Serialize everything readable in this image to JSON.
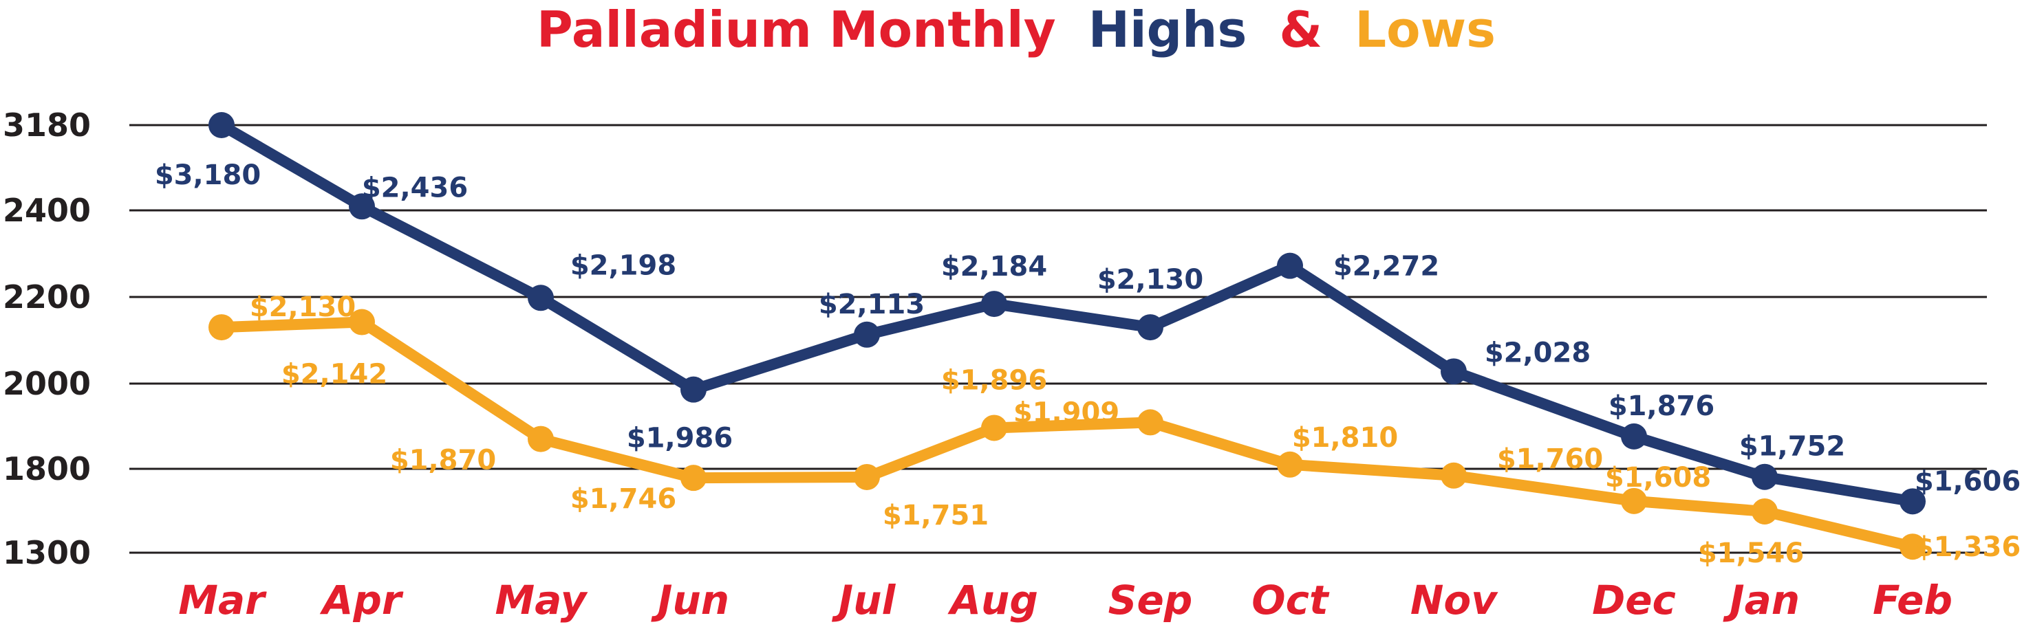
{
  "chart_data": {
    "type": "line",
    "title": {
      "part1": "Palladium Monthly",
      "part2": "Highs",
      "part3": "&",
      "part4": "Lows"
    },
    "categories": [
      "Mar",
      "Apr",
      "May",
      "Jun",
      "Jul",
      "Aug",
      "Sep",
      "Oct",
      "Nov",
      "Dec",
      "Jan",
      "Feb"
    ],
    "y_ticks": [
      "3180",
      "2400",
      "2200",
      "2000",
      "1800",
      "1300"
    ],
    "grid": true,
    "series": [
      {
        "name": "Highs",
        "color": "#233a70",
        "values": [
          3180,
          2436,
          2198,
          1986,
          2113,
          2184,
          2130,
          2272,
          2028,
          1876,
          1752,
          1606
        ],
        "labels": [
          "$3,180",
          "$2,436",
          "$2,198",
          "$1,986",
          "$2,113",
          "$2,184",
          "$2,130",
          "$2,272",
          "$2,028",
          "$1,876",
          "$1,752",
          "$1,606"
        ]
      },
      {
        "name": "Lows",
        "color": "#f5a623",
        "values": [
          2130,
          2142,
          1870,
          1746,
          1751,
          1896,
          1909,
          1810,
          1760,
          1608,
          1546,
          1336
        ],
        "labels": [
          "$2,130",
          "$2,142",
          "$1,870",
          "$1,746",
          "$1,751",
          "$1,896",
          "$1,909",
          "$1,810",
          "$1,760",
          "$1,608",
          "$1,546",
          "$1,336"
        ]
      }
    ],
    "colors": {
      "title_red": "#e31e2d",
      "title_blue": "#233a70",
      "title_orange": "#f5a623",
      "month_red": "#e31e2d",
      "axis_text": "#231f20",
      "grid": "#231f20"
    }
  }
}
